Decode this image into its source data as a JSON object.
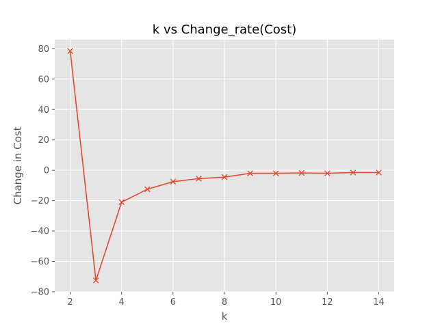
{
  "chart_data": {
    "type": "line",
    "title": "k vs Change_rate(Cost)",
    "xlabel": "k",
    "ylabel": "Change in Cost",
    "x": [
      2,
      3,
      4,
      5,
      6,
      7,
      8,
      9,
      10,
      11,
      12,
      13,
      14
    ],
    "series": [
      {
        "values": [
          78.5,
          -72.5,
          -21,
          -12.5,
          -7.5,
          -5.5,
          -4.5,
          -2,
          -2,
          -1.8,
          -2,
          -1.5,
          -1.5
        ],
        "color": "#E24A33",
        "marker": "x"
      }
    ],
    "xlim": [
      1.4,
      14.6
    ],
    "ylim": [
      -80,
      86
    ],
    "xticks": [
      2,
      4,
      6,
      8,
      10,
      12,
      14
    ],
    "yticks": [
      -80,
      -60,
      -40,
      -20,
      0,
      20,
      40,
      60,
      80
    ],
    "grid": true,
    "style": {
      "plot_background": "#E5E5E5",
      "grid_color": "#FFFFFF",
      "tick_label_color": "#555555"
    }
  }
}
